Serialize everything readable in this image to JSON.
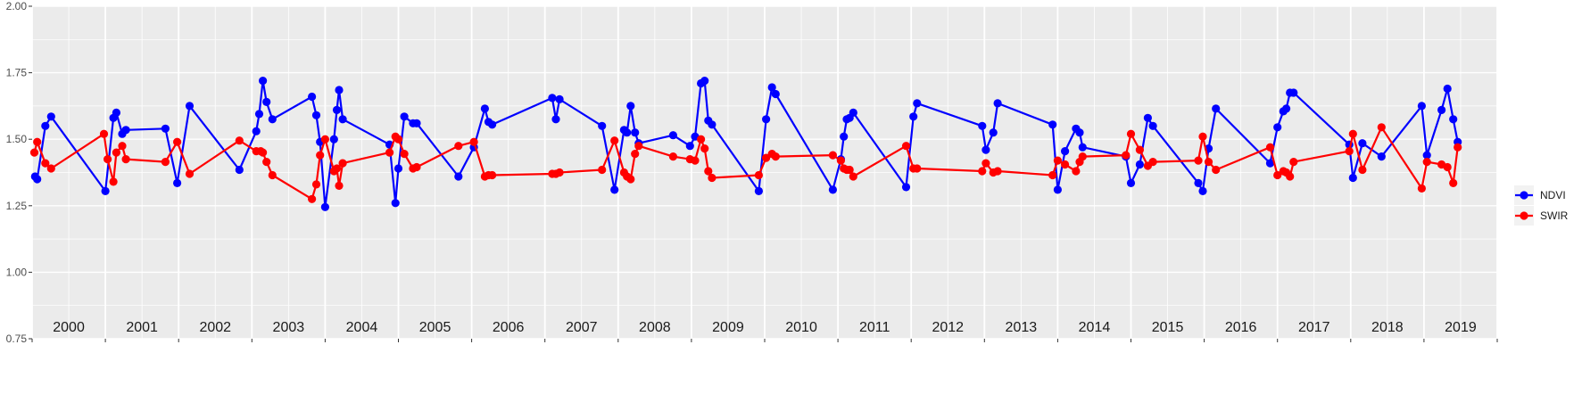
{
  "chart_data": {
    "type": "line",
    "title": "",
    "xlabel": "",
    "ylabel": "",
    "ylim": [
      0.75,
      2.0
    ],
    "y_ticks": [
      "0.75",
      "1.00",
      "1.25",
      "1.50",
      "1.75",
      "2.00"
    ],
    "x_range": [
      2000.0,
      2020.0
    ],
    "year_labels": [
      "2000",
      "2001",
      "2002",
      "2003",
      "2004",
      "2005",
      "2006",
      "2007",
      "2008",
      "2009",
      "2010",
      "2011",
      "2012",
      "2013",
      "2014",
      "2015",
      "2016",
      "2017",
      "2018",
      "2019"
    ],
    "grid": true,
    "legend_position": "right",
    "series": [
      {
        "name": "NDVI",
        "color": "#0000ff",
        "points": [
          [
            2000.04,
            1.36
          ],
          [
            2000.07,
            1.35
          ],
          [
            2000.18,
            1.55
          ],
          [
            2000.26,
            1.585
          ],
          [
            2001.0,
            1.305
          ],
          [
            2001.11,
            1.58
          ],
          [
            2001.15,
            1.6
          ],
          [
            2001.23,
            1.52
          ],
          [
            2001.28,
            1.535
          ],
          [
            2001.82,
            1.54
          ],
          [
            2001.98,
            1.335
          ],
          [
            2002.15,
            1.625
          ],
          [
            2002.83,
            1.385
          ],
          [
            2003.06,
            1.53
          ],
          [
            2003.1,
            1.595
          ],
          [
            2003.15,
            1.72
          ],
          [
            2003.2,
            1.64
          ],
          [
            2003.28,
            1.575
          ],
          [
            2003.82,
            1.66
          ],
          [
            2003.88,
            1.59
          ],
          [
            2003.93,
            1.49
          ],
          [
            2004.0,
            1.245
          ],
          [
            2004.12,
            1.5
          ],
          [
            2004.16,
            1.61
          ],
          [
            2004.19,
            1.685
          ],
          [
            2004.24,
            1.575
          ],
          [
            2004.88,
            1.48
          ],
          [
            2004.96,
            1.26
          ],
          [
            2005.0,
            1.39
          ],
          [
            2005.08,
            1.585
          ],
          [
            2005.2,
            1.56
          ],
          [
            2005.25,
            1.56
          ],
          [
            2005.82,
            1.36
          ],
          [
            2006.03,
            1.47
          ],
          [
            2006.18,
            1.615
          ],
          [
            2006.23,
            1.565
          ],
          [
            2006.28,
            1.555
          ],
          [
            2007.1,
            1.655
          ],
          [
            2007.15,
            1.575
          ],
          [
            2007.2,
            1.65
          ],
          [
            2007.78,
            1.55
          ],
          [
            2007.95,
            1.31
          ],
          [
            2008.08,
            1.535
          ],
          [
            2008.12,
            1.525
          ],
          [
            2008.17,
            1.625
          ],
          [
            2008.23,
            1.525
          ],
          [
            2008.28,
            1.485
          ],
          [
            2008.75,
            1.515
          ],
          [
            2008.98,
            1.475
          ],
          [
            2009.05,
            1.51
          ],
          [
            2009.13,
            1.71
          ],
          [
            2009.18,
            1.72
          ],
          [
            2009.23,
            1.57
          ],
          [
            2009.28,
            1.555
          ],
          [
            2009.92,
            1.305
          ],
          [
            2010.02,
            1.575
          ],
          [
            2010.1,
            1.695
          ],
          [
            2010.15,
            1.67
          ],
          [
            2010.93,
            1.31
          ],
          [
            2011.04,
            1.425
          ],
          [
            2011.08,
            1.51
          ],
          [
            2011.12,
            1.575
          ],
          [
            2011.16,
            1.58
          ],
          [
            2011.21,
            1.6
          ],
          [
            2011.93,
            1.32
          ],
          [
            2012.03,
            1.585
          ],
          [
            2012.08,
            1.635
          ],
          [
            2012.97,
            1.55
          ],
          [
            2013.02,
            1.46
          ],
          [
            2013.12,
            1.525
          ],
          [
            2013.18,
            1.635
          ],
          [
            2013.93,
            1.555
          ],
          [
            2014.0,
            1.31
          ],
          [
            2014.1,
            1.455
          ],
          [
            2014.25,
            1.54
          ],
          [
            2014.3,
            1.525
          ],
          [
            2014.34,
            1.47
          ],
          [
            2014.93,
            1.435
          ],
          [
            2015.0,
            1.335
          ],
          [
            2015.12,
            1.405
          ],
          [
            2015.23,
            1.58
          ],
          [
            2015.3,
            1.55
          ],
          [
            2015.92,
            1.335
          ],
          [
            2015.98,
            1.305
          ],
          [
            2016.06,
            1.465
          ],
          [
            2016.16,
            1.615
          ],
          [
            2016.9,
            1.41
          ],
          [
            2017.0,
            1.545
          ],
          [
            2017.08,
            1.605
          ],
          [
            2017.12,
            1.615
          ],
          [
            2017.17,
            1.675
          ],
          [
            2017.22,
            1.675
          ],
          [
            2017.98,
            1.48
          ],
          [
            2018.03,
            1.355
          ],
          [
            2018.16,
            1.485
          ],
          [
            2018.42,
            1.435
          ],
          [
            2018.97,
            1.625
          ],
          [
            2019.04,
            1.44
          ],
          [
            2019.24,
            1.61
          ],
          [
            2019.32,
            1.69
          ],
          [
            2019.4,
            1.575
          ],
          [
            2019.46,
            1.49
          ]
        ]
      },
      {
        "name": "SWIR",
        "color": "#ff0000",
        "points": [
          [
            2000.03,
            1.45
          ],
          [
            2000.07,
            1.49
          ],
          [
            2000.18,
            1.41
          ],
          [
            2000.26,
            1.39
          ],
          [
            2000.98,
            1.52
          ],
          [
            2001.03,
            1.425
          ],
          [
            2001.11,
            1.34
          ],
          [
            2001.15,
            1.45
          ],
          [
            2001.23,
            1.475
          ],
          [
            2001.28,
            1.425
          ],
          [
            2001.82,
            1.415
          ],
          [
            2001.98,
            1.49
          ],
          [
            2002.15,
            1.37
          ],
          [
            2002.83,
            1.495
          ],
          [
            2003.06,
            1.455
          ],
          [
            2003.12,
            1.455
          ],
          [
            2003.15,
            1.45
          ],
          [
            2003.2,
            1.415
          ],
          [
            2003.28,
            1.365
          ],
          [
            2003.82,
            1.275
          ],
          [
            2003.88,
            1.33
          ],
          [
            2003.93,
            1.44
          ],
          [
            2004.0,
            1.5
          ],
          [
            2004.12,
            1.38
          ],
          [
            2004.16,
            1.39
          ],
          [
            2004.19,
            1.325
          ],
          [
            2004.24,
            1.41
          ],
          [
            2004.88,
            1.45
          ],
          [
            2004.96,
            1.51
          ],
          [
            2005.0,
            1.5
          ],
          [
            2005.08,
            1.445
          ],
          [
            2005.2,
            1.39
          ],
          [
            2005.25,
            1.395
          ],
          [
            2005.82,
            1.475
          ],
          [
            2006.03,
            1.49
          ],
          [
            2006.18,
            1.36
          ],
          [
            2006.23,
            1.365
          ],
          [
            2006.28,
            1.365
          ],
          [
            2007.1,
            1.37
          ],
          [
            2007.15,
            1.37
          ],
          [
            2007.2,
            1.375
          ],
          [
            2007.78,
            1.385
          ],
          [
            2007.95,
            1.495
          ],
          [
            2008.08,
            1.375
          ],
          [
            2008.12,
            1.36
          ],
          [
            2008.17,
            1.35
          ],
          [
            2008.23,
            1.445
          ],
          [
            2008.28,
            1.475
          ],
          [
            2008.75,
            1.435
          ],
          [
            2008.98,
            1.425
          ],
          [
            2009.05,
            1.42
          ],
          [
            2009.13,
            1.5
          ],
          [
            2009.18,
            1.465
          ],
          [
            2009.23,
            1.38
          ],
          [
            2009.28,
            1.355
          ],
          [
            2009.92,
            1.365
          ],
          [
            2010.02,
            1.43
          ],
          [
            2010.1,
            1.445
          ],
          [
            2010.15,
            1.435
          ],
          [
            2010.93,
            1.44
          ],
          [
            2011.04,
            1.42
          ],
          [
            2011.08,
            1.39
          ],
          [
            2011.12,
            1.385
          ],
          [
            2011.16,
            1.385
          ],
          [
            2011.21,
            1.36
          ],
          [
            2011.93,
            1.475
          ],
          [
            2012.03,
            1.39
          ],
          [
            2012.08,
            1.39
          ],
          [
            2012.97,
            1.38
          ],
          [
            2013.02,
            1.41
          ],
          [
            2013.12,
            1.375
          ],
          [
            2013.18,
            1.38
          ],
          [
            2013.93,
            1.365
          ],
          [
            2014.0,
            1.42
          ],
          [
            2014.1,
            1.405
          ],
          [
            2014.25,
            1.38
          ],
          [
            2014.3,
            1.415
          ],
          [
            2014.34,
            1.435
          ],
          [
            2014.93,
            1.44
          ],
          [
            2015.0,
            1.52
          ],
          [
            2015.12,
            1.46
          ],
          [
            2015.23,
            1.4
          ],
          [
            2015.3,
            1.415
          ],
          [
            2015.92,
            1.42
          ],
          [
            2015.98,
            1.51
          ],
          [
            2016.06,
            1.415
          ],
          [
            2016.16,
            1.385
          ],
          [
            2016.9,
            1.47
          ],
          [
            2017.0,
            1.365
          ],
          [
            2017.08,
            1.38
          ],
          [
            2017.12,
            1.375
          ],
          [
            2017.17,
            1.36
          ],
          [
            2017.22,
            1.415
          ],
          [
            2017.98,
            1.455
          ],
          [
            2018.03,
            1.52
          ],
          [
            2018.16,
            1.385
          ],
          [
            2018.42,
            1.545
          ],
          [
            2018.97,
            1.315
          ],
          [
            2019.04,
            1.415
          ],
          [
            2019.24,
            1.405
          ],
          [
            2019.32,
            1.395
          ],
          [
            2019.4,
            1.335
          ],
          [
            2019.46,
            1.47
          ]
        ]
      }
    ]
  }
}
